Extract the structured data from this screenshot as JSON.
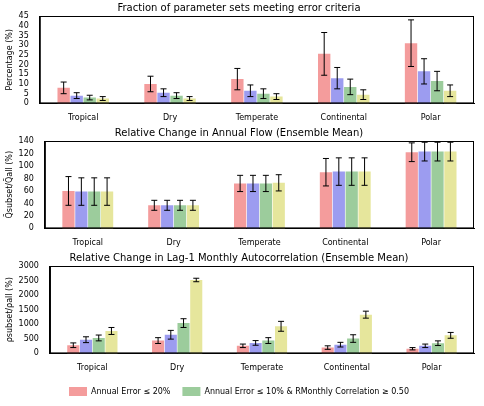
{
  "chart_data": [
    {
      "type": "bar",
      "title": "Fraction of parameter sets meeting error criteria",
      "y_label": "Percentage (%)",
      "categories": [
        "Tropical",
        "Dry",
        "Temperate",
        "Continental",
        "Polar"
      ],
      "series": [
        {
          "color": "#f49c9c",
          "values": [
            8,
            10,
            12.5,
            25.5,
            31
          ],
          "errors": [
            3,
            4,
            5.5,
            11,
            12
          ]
        },
        {
          "color": "#9c9cf0",
          "values": [
            4,
            5.5,
            6.5,
            13,
            16.5
          ],
          "errors": [
            1.5,
            2,
            3,
            5.5,
            6.5
          ]
        },
        {
          "color": "#9ccc9c",
          "values": [
            3,
            4,
            5,
            8.5,
            11.5
          ],
          "errors": [
            1.2,
            1.5,
            2.5,
            4,
            5
          ]
        },
        {
          "color": "#e6e69c",
          "values": [
            2.5,
            2.5,
            3.5,
            4.5,
            6.5
          ],
          "errors": [
            1,
            1,
            1.5,
            2.5,
            3
          ]
        }
      ],
      "ylim": [
        0,
        45
      ],
      "yticks": [
        0,
        5,
        10,
        15,
        20,
        25,
        30,
        35,
        40,
        45
      ],
      "grid": false
    },
    {
      "type": "bar",
      "title": "Relative Change in Annual Flow (Ensemble Mean)",
      "y_label": "Q̄subset/Q̄all (%)",
      "categories": [
        "Tropical",
        "Dry",
        "Temperate",
        "Continental",
        "Polar"
      ],
      "series": [
        {
          "color": "#f49c9c",
          "values": [
            60,
            37,
            72,
            90,
            122
          ],
          "errors": [
            23,
            8,
            13,
            22,
            15
          ]
        },
        {
          "color": "#9c9cf0",
          "values": [
            59,
            37,
            72,
            91,
            123
          ],
          "errors": [
            22,
            8,
            13,
            22,
            15
          ]
        },
        {
          "color": "#9ccc9c",
          "values": [
            59,
            37,
            72,
            91,
            123
          ],
          "errors": [
            22,
            8,
            13,
            22,
            15
          ]
        },
        {
          "color": "#e6e69c",
          "values": [
            59,
            37,
            73,
            91,
            123
          ],
          "errors": [
            22,
            8,
            13,
            22,
            15
          ]
        }
      ],
      "ylim": [
        0,
        140
      ],
      "yticks": [
        0,
        20,
        40,
        60,
        80,
        100,
        120,
        140
      ],
      "grid": false
    },
    {
      "type": "bar",
      "title": "Relative Change in Lag-1 Monthly Autocorrelation (Ensemble Mean)",
      "y_label": "ρsubset/ρall (%)",
      "categories": [
        "Tropical",
        "Dry",
        "Temperate",
        "Continental",
        "Polar"
      ],
      "series": [
        {
          "name": "Annual Error ≤ 20%",
          "color": "#f49c9c",
          "values": [
            280,
            440,
            260,
            200,
            160
          ],
          "errors": [
            80,
            100,
            60,
            60,
            40
          ]
        },
        {
          "color": "#9c9cf0",
          "values": [
            470,
            640,
            360,
            300,
            260
          ],
          "errors": [
            100,
            150,
            80,
            80,
            60
          ]
        },
        {
          "name": "Annual Error ≤ 10% & RMonthly Correlation ≥ 0.50",
          "color": "#9ccc9c",
          "values": [
            530,
            1040,
            440,
            510,
            350
          ],
          "errors": [
            100,
            150,
            100,
            130,
            80
          ]
        },
        {
          "color": "#e6e69c",
          "values": [
            770,
            2520,
            930,
            1330,
            620
          ],
          "errors": [
            120,
            60,
            170,
            120,
            100
          ]
        }
      ],
      "ylim": [
        0,
        3000
      ],
      "yticks": [
        0,
        500,
        1000,
        1500,
        2000,
        2500,
        3000
      ],
      "grid": false,
      "legend": "bottom"
    }
  ]
}
